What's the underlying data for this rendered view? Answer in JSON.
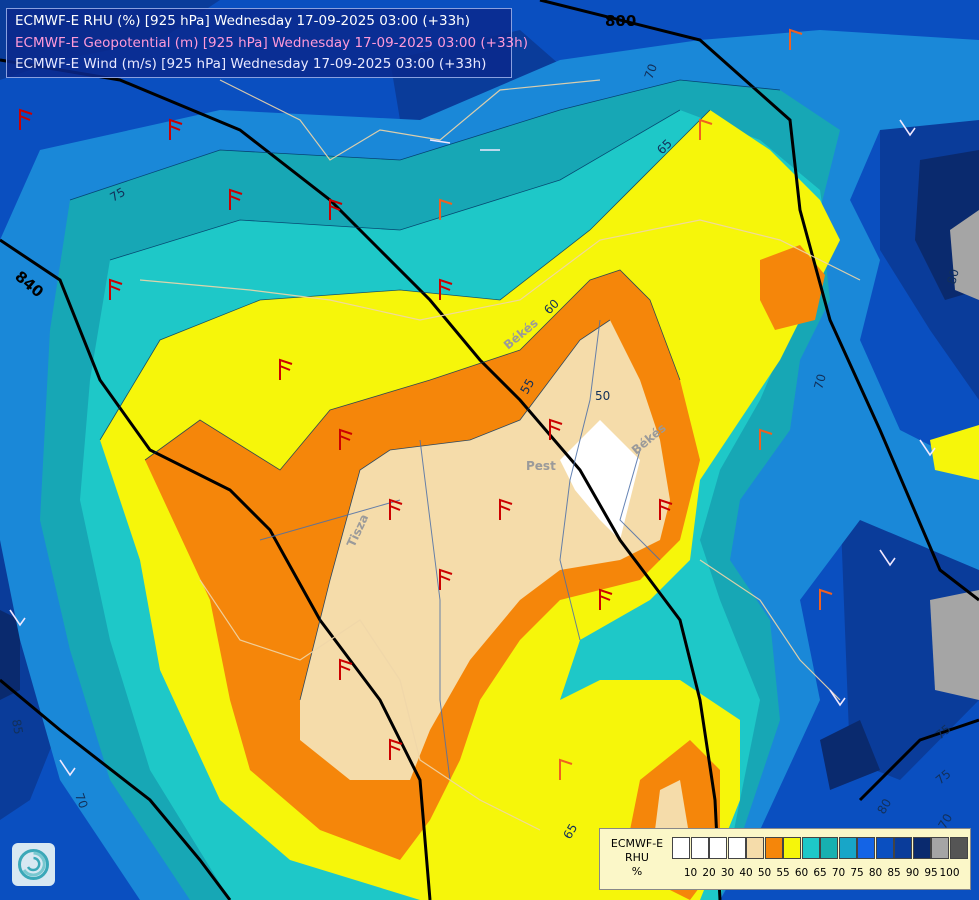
{
  "header": {
    "lines": [
      {
        "text": "ECMWF-E RHU (%) [925 hPa] Wednesday 17-09-2025 03:00 (+33h)",
        "color": "#ffffff"
      },
      {
        "text": "ECMWF-E Geopotential (m) [925 hPa] Wednesday 17-09-2025 03:00 (+33h)",
        "color": "#ff9ad8"
      },
      {
        "text": "ECMWF-E Wind (m/s) [925 hPa] Wednesday 17-09-2025 03:00 (+33h)",
        "color": "#e8e8ff"
      }
    ]
  },
  "map": {
    "contour_labels": {
      "geo_800": "800",
      "geo_840": "840",
      "rh_50": "50",
      "rh_55": "55",
      "rh_60": "60",
      "rh_65a": "65",
      "rh_65b": "65",
      "rh_70a": "70",
      "rh_70b": "70",
      "rh_70c": "70",
      "rh_70d": "70",
      "rh_75a": "75",
      "rh_75b": "75",
      "rh_75c": "75",
      "rh_80a": "80",
      "rh_80b": "80",
      "rh_85": "85"
    },
    "place_labels": {
      "pest": "Pest",
      "bekes": "Békés",
      "bekes2": "Békés",
      "tisza": "Tisza"
    }
  },
  "legend": {
    "title_line1": "ECMWF-E",
    "title_line2": "RHU",
    "unit": "%",
    "ticks": [
      "10",
      "20",
      "30",
      "40",
      "50",
      "55",
      "60",
      "65",
      "70",
      "75",
      "80",
      "85",
      "90",
      "95",
      "100"
    ],
    "colors": [
      "#ffffff",
      "#ffffff",
      "#ffffff",
      "#ffffff",
      "#f5dcaa",
      "#f5860a",
      "#f6f60a",
      "#1ec8c8",
      "#17b0b0",
      "#18a6c8",
      "#1464e6",
      "#0a4fc0",
      "#0a3c9a",
      "#0a2a6e",
      "#a5a5a5",
      "#555555"
    ]
  }
}
